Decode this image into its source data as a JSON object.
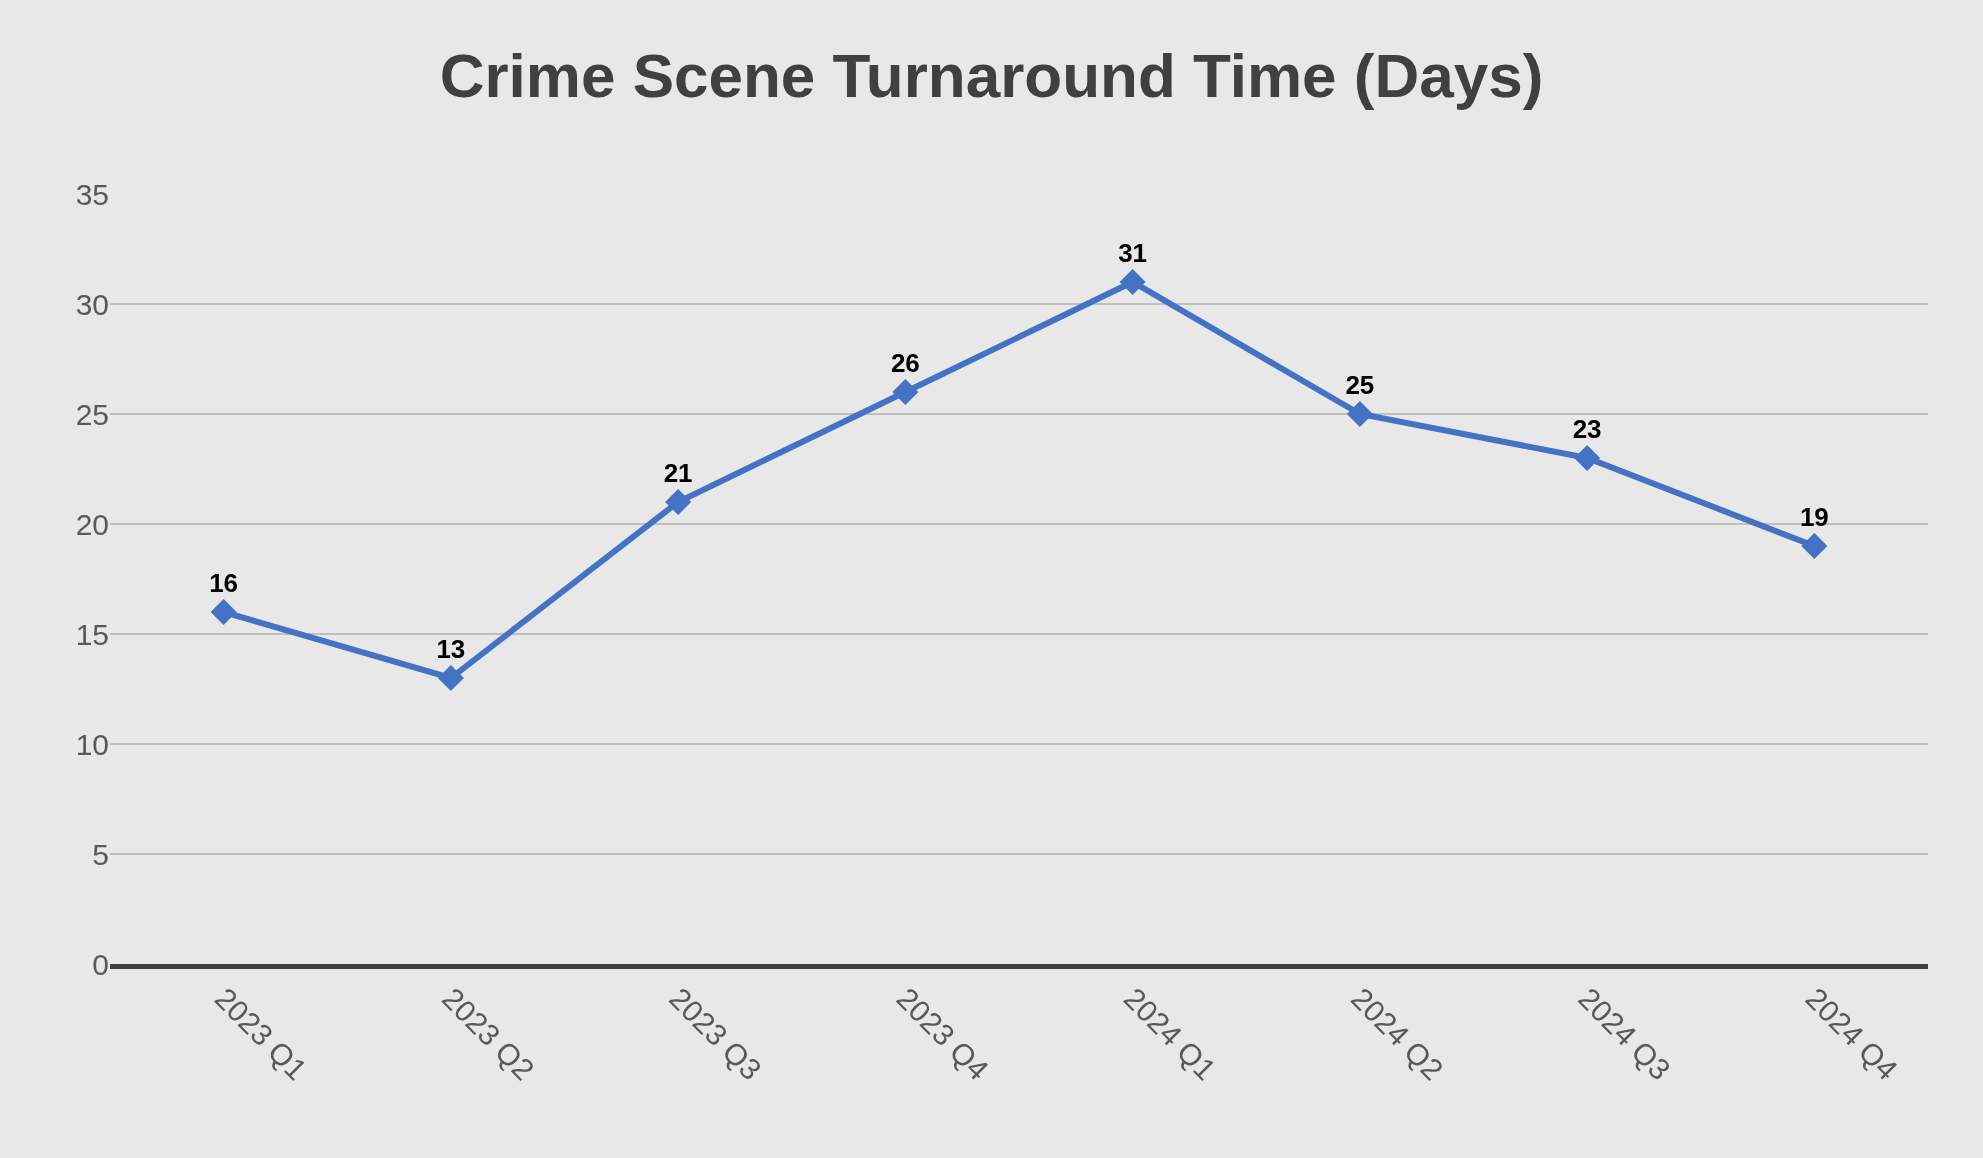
{
  "chart_data": {
    "type": "line",
    "title": "Crime Scene Turnaround Time (Days)",
    "categories": [
      "2023 Q1",
      "2023 Q2",
      "2023 Q3",
      "2023 Q4",
      "2024 Q1",
      "2024 Q2",
      "2024 Q3",
      "2024 Q4"
    ],
    "values": [
      16,
      13,
      21,
      26,
      31,
      25,
      23,
      19
    ],
    "color": "#4472c4",
    "ylim": [
      0,
      35
    ],
    "yticks": [
      0,
      5,
      10,
      15,
      20,
      25,
      30,
      35
    ],
    "grid": "y",
    "marker": "diamond",
    "line_style": "solid",
    "data_labels": true
  }
}
